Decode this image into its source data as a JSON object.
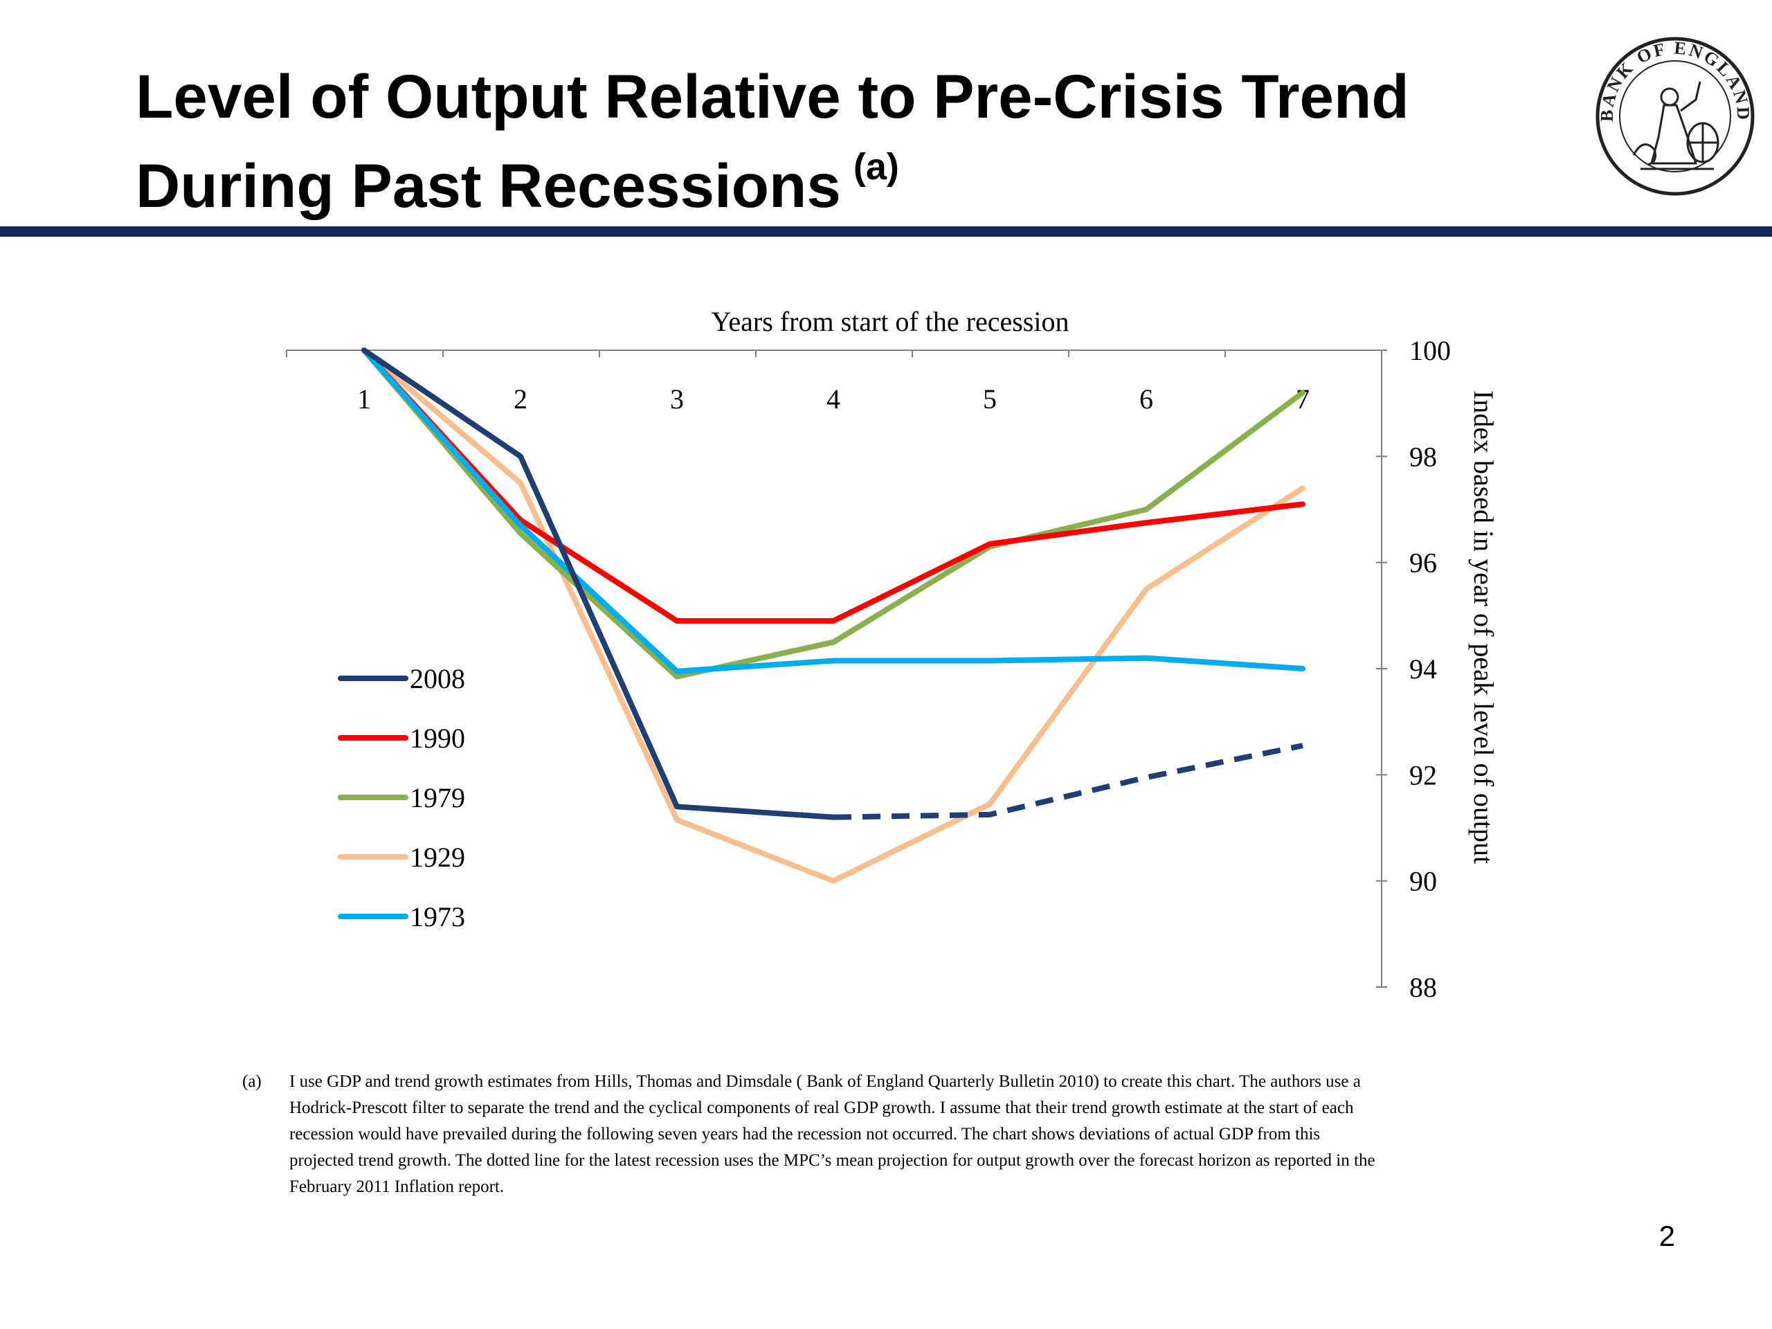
{
  "slide": {
    "title": "Level of Output Relative to Pre-Crisis Trend During Past Recessions",
    "title_marker": "(a)",
    "page_number": "2",
    "rule_color": "#14285a"
  },
  "seal": {
    "text": "BANK OF ENGLAND",
    "icon": "britannia-seal-icon"
  },
  "chart_data": {
    "type": "line",
    "title": "",
    "xlabel": "Years from start of the recession",
    "ylabel": "Index based in year of peak level of output",
    "x": [
      1,
      2,
      3,
      4,
      5,
      6,
      7
    ],
    "x_ticks": [
      "1",
      "2",
      "3",
      "4",
      "5",
      "6",
      "7"
    ],
    "x_axis_position": "top",
    "y_axis_position": "right",
    "ylim": [
      88,
      100
    ],
    "y_ticks": [
      88,
      90,
      92,
      94,
      96,
      98,
      100
    ],
    "grid": false,
    "legend_position": "left",
    "series": [
      {
        "name": "2008",
        "color": "#1f3f73",
        "values": [
          100,
          98.0,
          91.4,
          91.2,
          91.25,
          91.95,
          92.55
        ],
        "dashed_from_index": 3
      },
      {
        "name": "1990",
        "color": "#ff0000",
        "values": [
          100,
          96.8,
          94.9,
          94.9,
          96.35,
          96.75,
          97.1
        ]
      },
      {
        "name": "1979",
        "color": "#8aaf4e",
        "values": [
          100,
          96.55,
          93.85,
          94.5,
          96.3,
          97.0,
          99.2
        ]
      },
      {
        "name": "1929",
        "color": "#f9be8e",
        "values": [
          100,
          97.5,
          91.15,
          90.0,
          91.45,
          95.5,
          97.4
        ]
      },
      {
        "name": "1973",
        "color": "#00adee",
        "values": [
          100,
          96.7,
          93.95,
          94.15,
          94.15,
          94.2,
          94.0
        ]
      }
    ]
  },
  "footnote": {
    "marker": "(a)",
    "text": "I use GDP and trend growth estimates from Hills, Thomas and Dimsdale ( Bank of England Quarterly Bulletin 2010) to create this chart. The authors use a Hodrick-Prescott filter to separate the trend and the cyclical components of real GDP growth. I assume that their trend growth estimate at the start of each recession would have prevailed during the following seven years had the recession not occurred. The chart shows deviations of actual GDP from this projected trend growth. The dotted line for the latest recession uses the MPC’s mean projection for output growth over the forecast horizon as reported in the February 2011 Inflation report."
  }
}
